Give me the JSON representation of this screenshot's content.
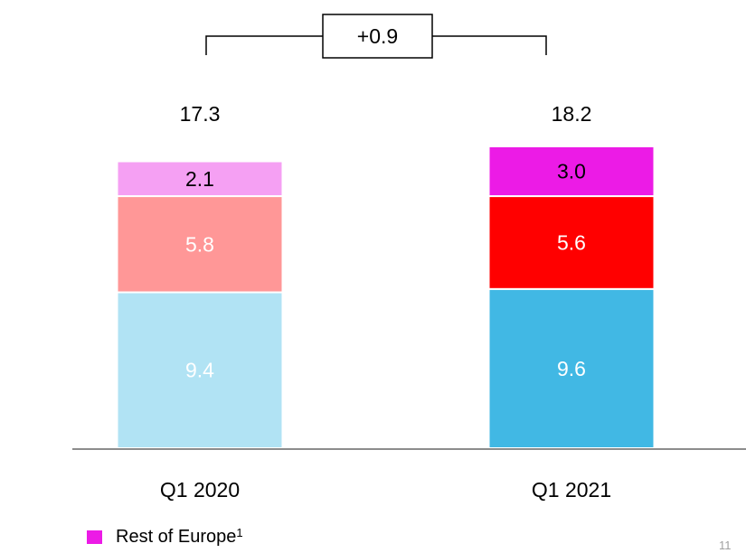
{
  "chart_data": {
    "type": "bar",
    "stacked": true,
    "categories": [
      "Q1 2020",
      "Q1 2021"
    ],
    "series": [
      {
        "values": [
          9.4,
          9.6
        ],
        "colors": [
          "#b1e3f4",
          "#41b8e4"
        ],
        "label_color": "#ffffff"
      },
      {
        "values": [
          5.8,
          5.6
        ],
        "colors": [
          "#ff9797",
          "#ff0000"
        ],
        "label_color": "#ffffff"
      },
      {
        "name": "Rest of Europe",
        "values": [
          2.1,
          3.0
        ],
        "colors": [
          "#f5a0f3",
          "#ec1be6"
        ],
        "label_color": "#000000"
      }
    ],
    "totals": [
      "17.3",
      "18.2"
    ],
    "difference": {
      "label": "+0.9"
    },
    "ylim": [
      0,
      18.2
    ],
    "grid": false
  },
  "legend": {
    "label": "Rest of Europe",
    "superscript": "1",
    "color": "#ec1be6"
  },
  "page_number": "11"
}
